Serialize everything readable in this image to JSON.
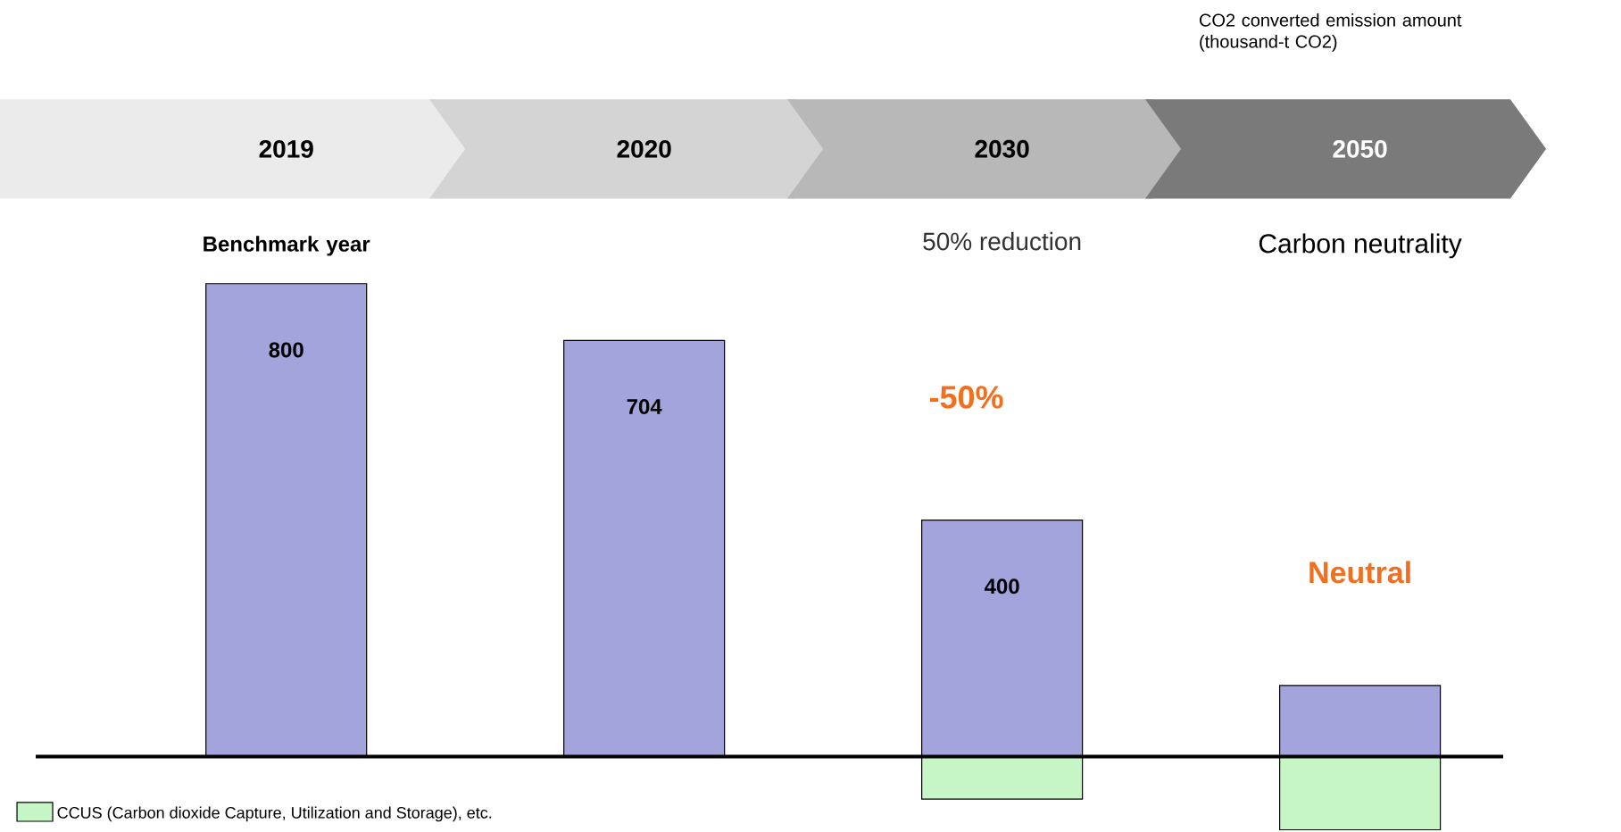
{
  "chart_data": {
    "type": "bar",
    "stacked": true,
    "categories": [
      "2019",
      "2020",
      "2030",
      "2050"
    ],
    "series": [
      {
        "color": "#a4a4dc",
        "values": [
          800,
          704,
          400,
          120
        ],
        "value_labels": [
          "800",
          "704",
          "400",
          null
        ]
      },
      {
        "name": "CCUS (Carbon dioxide Capture, Utilization and Storage), etc.",
        "color": "#c6f5c6",
        "values": [
          null,
          null,
          -72,
          -124
        ]
      }
    ],
    "annotations": [
      "CO2 converted emission amount (thousand-t CO2)",
      "Benchmark year",
      "50% reduction",
      "Carbon neutrality",
      "-50%",
      "Neutral"
    ],
    "legend": "bottom left"
  }
}
